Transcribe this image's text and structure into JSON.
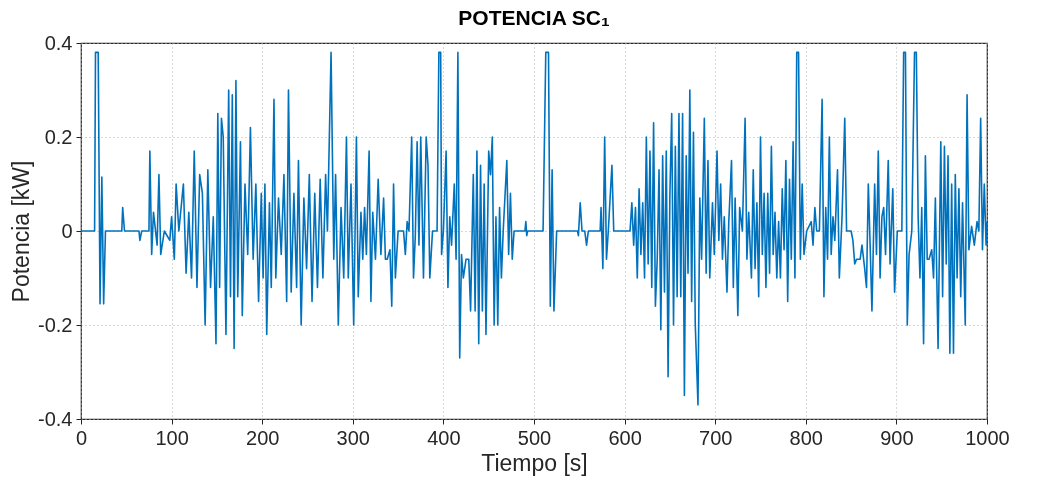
{
  "chart_data": {
    "type": "line",
    "title": "POTENCIA SC₁",
    "xlabel": "Tiempo [s]",
    "ylabel": "Potencia [kW]",
    "xlim": [
      0,
      1000
    ],
    "xticks": [
      0,
      100,
      200,
      300,
      400,
      500,
      600,
      700,
      800,
      900,
      1000
    ],
    "ylim": [
      -0.4,
      0.4
    ],
    "yticks": [
      -0.4,
      -0.2,
      0,
      0.2,
      0.4
    ],
    "grid": true,
    "marker": "none",
    "line_style": "solid",
    "series": [
      {
        "color": "#0072bd",
        "x": [
          0,
          15,
          16,
          19,
          21,
          23,
          25,
          27,
          45,
          46,
          48,
          64,
          65,
          67,
          75,
          76,
          78,
          80,
          84,
          86,
          88,
          92,
          98,
          100,
          103,
          105,
          108,
          113,
          116,
          119,
          122,
          125,
          128,
          131,
          134,
          137,
          140,
          143,
          146,
          149,
          151,
          153,
          155,
          157,
          160,
          163,
          165,
          167,
          169,
          171,
          173,
          176,
          178,
          181,
          184,
          187,
          190,
          193,
          196,
          199,
          201,
          203,
          205,
          208,
          210,
          213,
          215,
          218,
          221,
          224,
          227,
          229,
          232,
          235,
          238,
          240,
          243,
          246,
          249,
          252,
          255,
          258,
          261,
          264,
          267,
          270,
          272,
          276,
          279,
          281,
          284,
          287,
          290,
          293,
          295,
          298,
          301,
          304,
          306,
          309,
          311,
          313,
          315,
          318,
          320,
          322,
          325,
          328,
          331,
          334,
          336,
          338,
          341,
          343,
          345,
          347,
          350,
          356,
          358,
          360,
          362,
          365,
          367,
          369,
          371,
          373,
          375,
          378,
          381,
          383,
          385,
          388,
          393,
          395,
          397,
          398,
          400,
          403,
          405,
          407,
          409,
          412,
          414,
          416,
          418,
          420,
          422,
          425,
          428,
          430,
          433,
          435,
          437,
          439,
          441,
          443,
          445,
          447,
          450,
          452,
          454,
          456,
          458,
          460,
          462,
          464,
          466,
          470,
          472,
          474,
          476,
          478,
          490,
          491,
          492,
          493,
          510,
          513,
          516,
          518,
          520,
          522,
          525,
          548,
          549,
          551,
          553,
          556,
          558,
          560,
          573,
          574,
          576,
          578,
          580,
          582,
          586,
          588,
          606,
          608,
          610,
          612,
          614,
          616,
          618,
          620,
          622,
          624,
          626,
          628,
          630,
          632,
          634,
          636,
          638,
          640,
          642,
          644,
          646,
          648,
          650,
          652,
          654,
          656,
          658,
          660,
          662,
          664,
          666,
          668,
          670,
          672,
          674,
          676,
          678,
          681,
          683,
          685,
          688,
          690,
          692,
          694,
          697,
          699,
          702,
          704,
          706,
          708,
          710,
          713,
          715,
          718,
          720,
          722,
          725,
          727,
          730,
          733,
          735,
          737,
          740,
          742,
          744,
          746,
          748,
          750,
          752,
          754,
          756,
          758,
          760,
          762,
          764,
          766,
          768,
          770,
          772,
          774,
          776,
          778,
          780,
          782,
          784,
          786,
          788,
          790,
          792,
          794,
          796,
          798,
          801,
          806,
          808,
          810,
          812,
          815,
          818,
          820,
          822,
          824,
          826,
          828,
          830,
          832,
          835,
          837,
          840,
          843,
          845,
          850,
          852,
          854,
          856,
          860,
          862,
          865,
          867,
          869,
          871,
          873,
          876,
          878,
          880,
          882,
          884,
          886,
          888,
          891,
          893,
          896,
          898,
          901,
          906,
          908,
          910,
          912,
          914,
          917,
          920,
          922,
          924,
          926,
          928,
          930,
          932,
          934,
          936,
          939,
          941,
          943,
          946,
          949,
          951,
          953,
          955,
          957,
          959,
          961,
          963,
          965,
          967,
          969,
          971,
          973,
          976,
          978,
          980,
          983,
          986,
          989,
          991,
          993,
          995,
          997,
          999,
          1000
        ],
        "values": [
          0,
          0,
          0.38,
          0.38,
          -0.155,
          0.115,
          -0.155,
          0,
          0,
          0.05,
          0,
          0,
          -0.02,
          0,
          0,
          0.17,
          -0.05,
          0.04,
          -0.03,
          0.12,
          -0.05,
          0,
          -0.02,
          0.03,
          -0.06,
          0.1,
          0,
          0.1,
          -0.09,
          0.04,
          -0.1,
          0.17,
          -0.12,
          0.12,
          0.08,
          -0.2,
          0.13,
          -0.12,
          0.03,
          -0.24,
          0.25,
          -0.12,
          0.24,
          0.2,
          -0.22,
          0.3,
          -0.14,
          0.29,
          -0.25,
          0.32,
          -0.14,
          0.19,
          -0.18,
          0.1,
          -0.05,
          0.22,
          -0.06,
          0.1,
          -0.15,
          0.08,
          -0.1,
          0.1,
          -0.22,
          0.06,
          -0.12,
          0.28,
          -0.1,
          0.07,
          -0.05,
          0.12,
          -0.15,
          0.3,
          -0.13,
          0.08,
          -0.12,
          0.15,
          -0.2,
          0.07,
          -0.08,
          0.12,
          -0.15,
          0.08,
          -0.12,
          0.11,
          -0.1,
          0.12,
          0,
          0.38,
          -0.06,
          0.12,
          -0.2,
          0.05,
          -0.1,
          0.2,
          -0.1,
          0.1,
          -0.2,
          0.2,
          -0.14,
          0.04,
          -0.06,
          0.05,
          -0.05,
          0.17,
          -0.15,
          0.04,
          -0.06,
          0.11,
          -0.05,
          0.07,
          -0.06,
          -0.06,
          -0.04,
          -0.16,
          0.1,
          -0.1,
          0,
          0,
          -0.05,
          0.02,
          0,
          0.2,
          -0.1,
          -0.01,
          0.19,
          -0.03,
          0.2,
          -0.1,
          0.2,
          0.14,
          -0.1,
          0,
          0,
          0.38,
          0.38,
          -0.05,
          0,
          0.17,
          -0.12,
          0.03,
          -0.03,
          0.1,
          -0.06,
          0.38,
          -0.27,
          -0.05,
          -0.1,
          -0.06,
          -0.06,
          -0.17,
          0.12,
          -0.17,
          0.17,
          -0.24,
          0.14,
          -0.17,
          0.1,
          -0.22,
          0.17,
          0.12,
          0.2,
          -0.2,
          0.03,
          -0.2,
          0.05,
          -0.1,
          0,
          0.15,
          -0.05,
          0.08,
          -0.06,
          0,
          0,
          0.02,
          -0.01,
          0,
          0,
          0.38,
          0.38,
          -0.16,
          0.13,
          -0.17,
          0,
          0,
          -0.01,
          0.06,
          0,
          0,
          -0.03,
          0,
          0,
          0.05,
          -0.08,
          0.2,
          -0.06,
          0,
          0.14,
          0,
          0,
          0.06,
          -0.03,
          0.05,
          -0.1,
          0.09,
          -0.05,
          0.06,
          -0.1,
          0.2,
          -0.07,
          0.17,
          -0.12,
          0.23,
          -0.16,
          -0.06,
          0.13,
          -0.21,
          0.16,
          -0.13,
          0.17,
          -0.31,
          0.08,
          0.25,
          -0.2,
          0.18,
          -0.14,
          0.25,
          -0.14,
          0.25,
          -0.35,
          0.16,
          -0.09,
          0.3,
          -0.15,
          0.21,
          -0.2,
          -0.37,
          0.07,
          -0.06,
          0.24,
          -0.09,
          0.15,
          -0.1,
          0.06,
          -0.05,
          0.17,
          -0.02,
          0.1,
          -0.06,
          0.03,
          -0.13,
          0.02,
          0.15,
          -0.12,
          0.07,
          -0.18,
          0.05,
          0,
          0.24,
          -0.06,
          0.04,
          -0.1,
          0.13,
          -0.08,
          0.06,
          -0.14,
          0.2,
          -0.05,
          0.08,
          -0.12,
          0.08,
          -0.09,
          0.18,
          -0.05,
          0.04,
          -0.1,
          0.02,
          -0.1,
          0.09,
          -0.04,
          0.15,
          -0.15,
          0.11,
          -0.06,
          0.19,
          -0.1,
          0.38,
          0.38,
          -0.06,
          0.1,
          -0.05,
          0,
          0.02,
          -0.03,
          0.05,
          0,
          0,
          0.28,
          -0.14,
          0.05,
          -0.06,
          0.2,
          -0.05,
          0.03,
          -0.02,
          0.13,
          -0.1,
          0.03,
          0.24,
          0,
          0,
          -0.02,
          -0.07,
          -0.06,
          -0.06,
          -0.03,
          -0.08,
          -0.12,
          0.1,
          -0.03,
          -0.17,
          0.1,
          -0.05,
          0.17,
          -0.1,
          0.03,
          0.05,
          -0.05,
          0.15,
          -0.07,
          0.09,
          -0.13,
          0,
          0,
          0.38,
          0.38,
          -0.2,
          -0.05,
          0,
          0.38,
          0.38,
          0.03,
          -0.1,
          0.05,
          -0.24,
          0.16,
          -0.06,
          -0.06,
          -0.04,
          -0.1,
          0.07,
          -0.25,
          0.19,
          -0.14,
          0.18,
          -0.07,
          0.16,
          -0.26,
          0.1,
          -0.26,
          0.12,
          -0.1,
          0.09,
          -0.14,
          0.06,
          -0.2,
          0.29,
          -0.04,
          0.01,
          -0.03,
          0.02,
          0,
          0.24,
          -0.04,
          0.1,
          -0.03,
          0.02
        ]
      }
    ]
  }
}
